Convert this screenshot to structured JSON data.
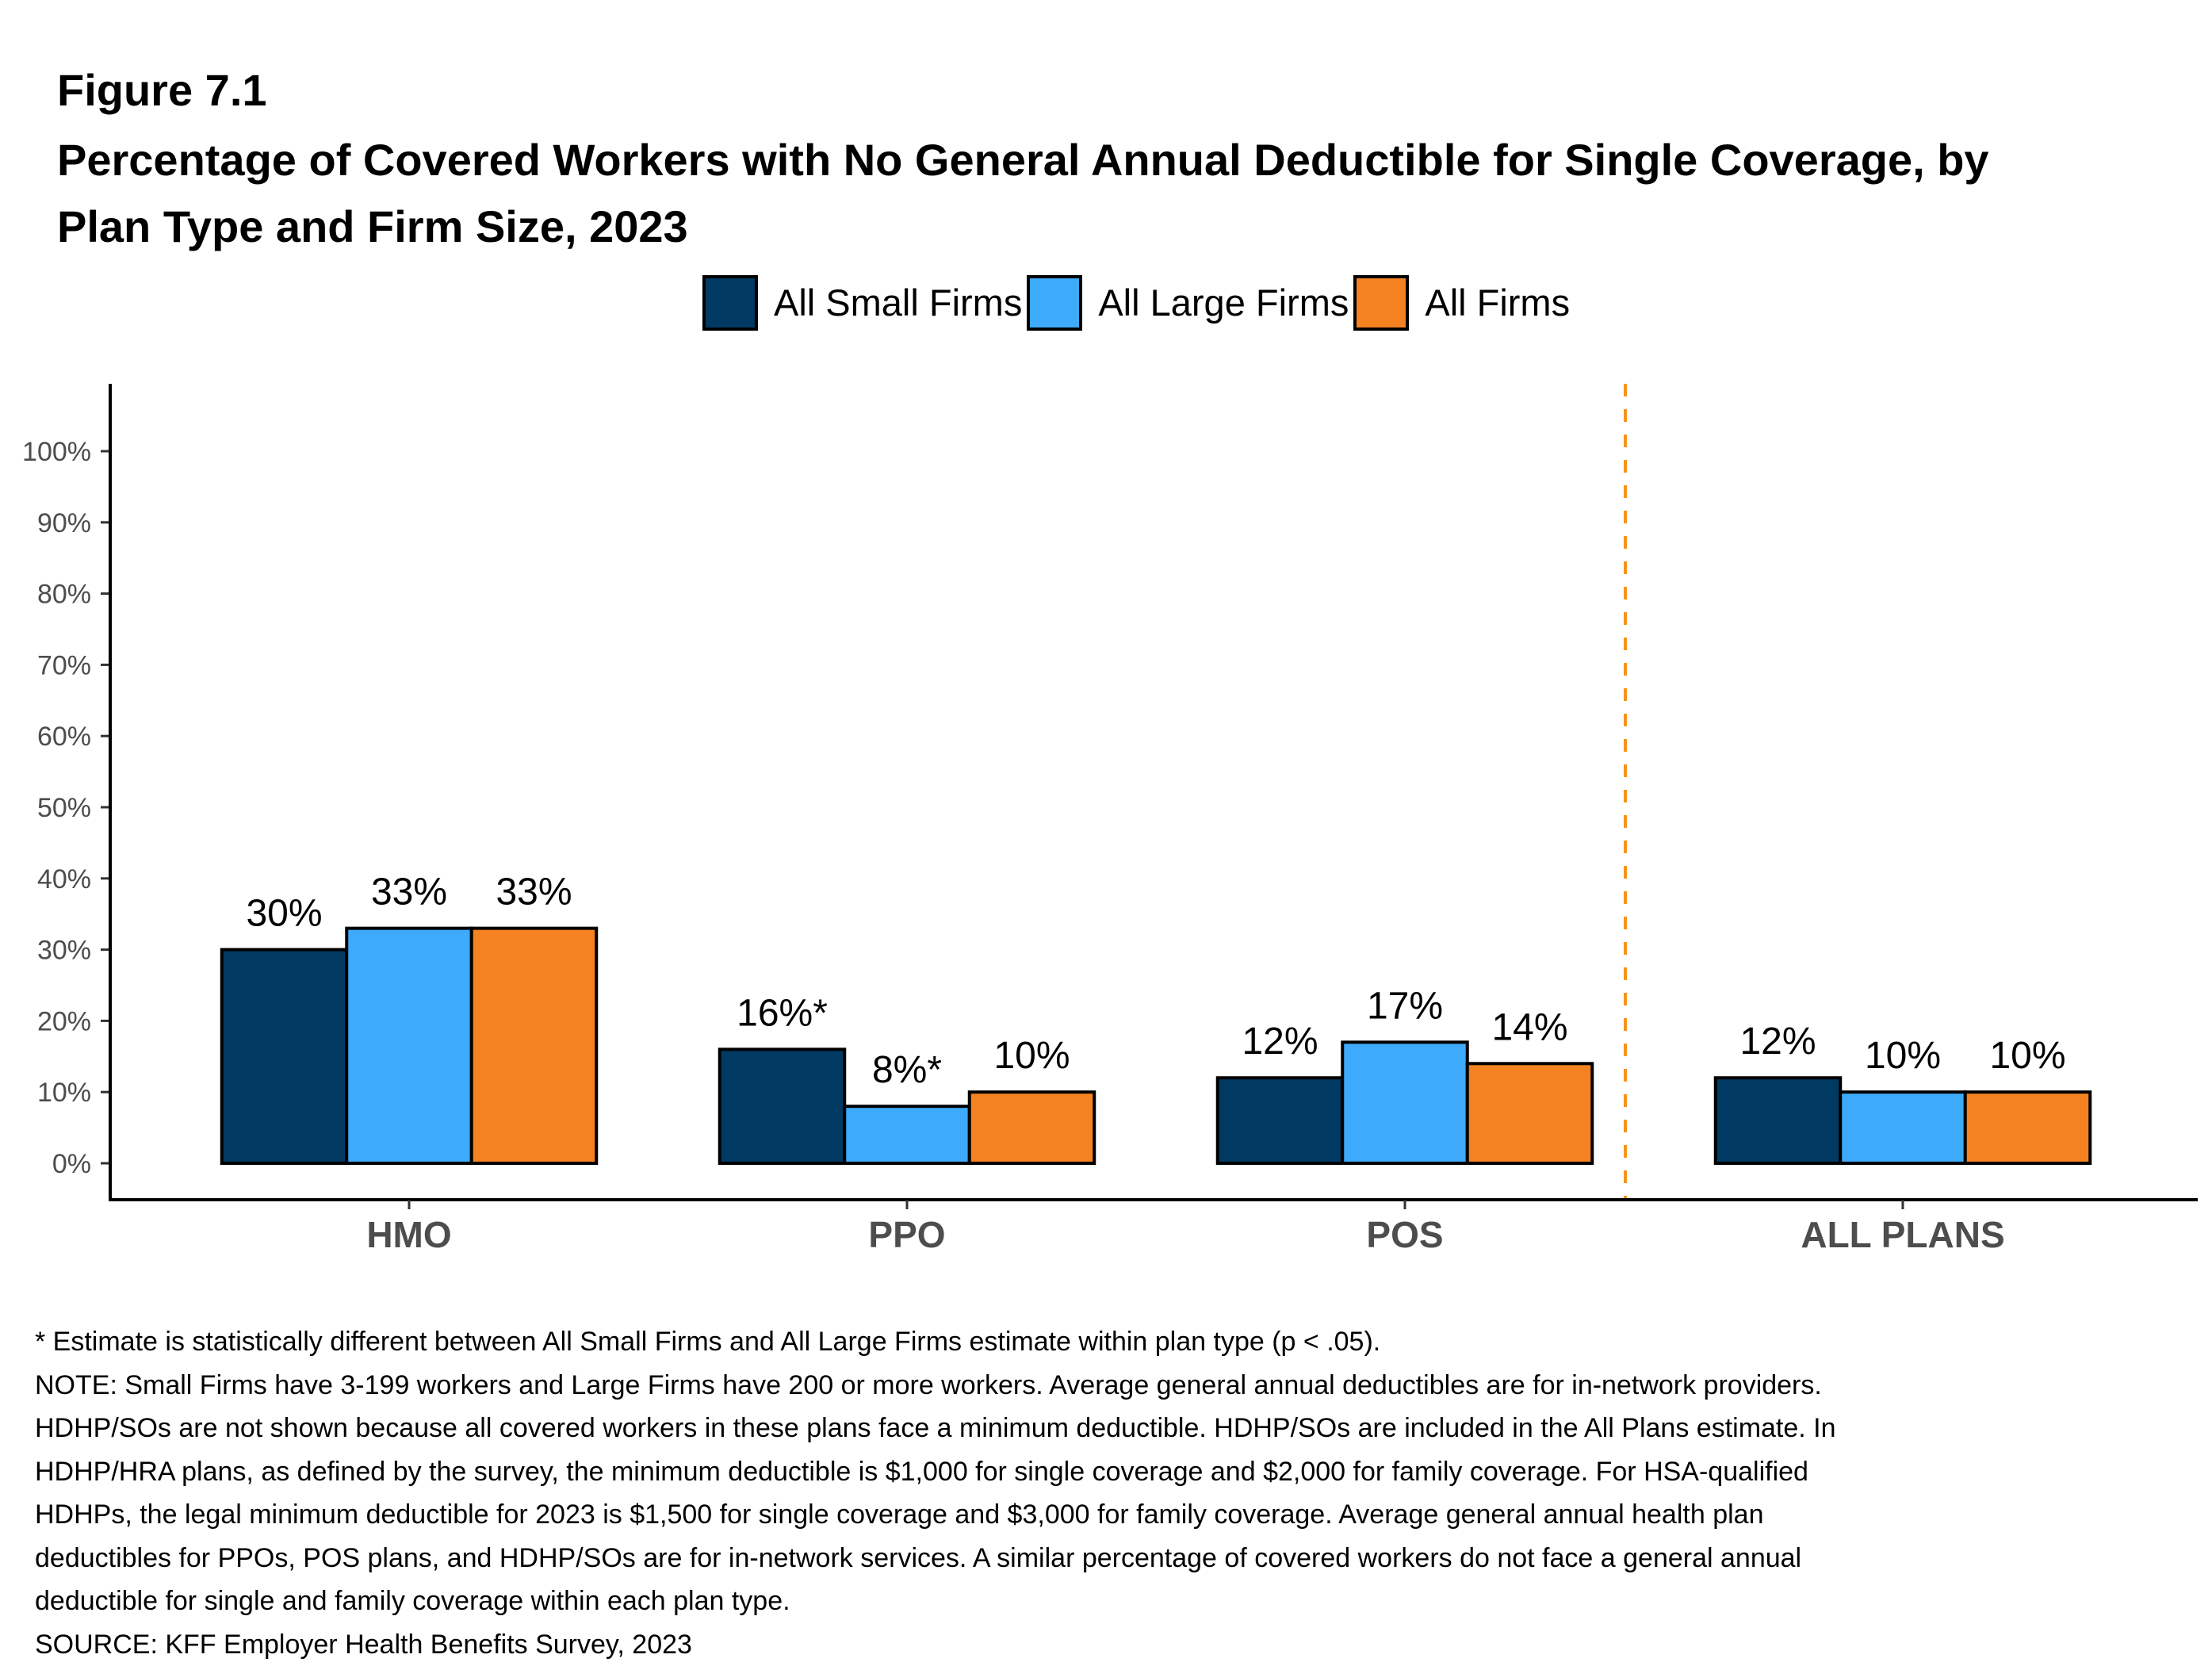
{
  "figure_label": "Figure 7.1",
  "title_lines": [
    "Percentage of Covered Workers with No General Annual Deductible for Single Coverage, by",
    "Plan Type and Firm Size, 2023"
  ],
  "notes": [
    "* Estimate is statistically different between All Small Firms and All Large Firms estimate within plan type (p < .05).",
    "NOTE: Small Firms have 3-199 workers and Large Firms have 200 or more workers. Average general annual deductibles are for in-network providers.",
    "HDHP/SOs are not shown because all covered workers in these plans face a minimum deductible. HDHP/SOs are included in the All Plans estimate. In",
    "HDHP/HRA plans, as defined by the survey, the minimum deductible is $1,000 for single coverage and $2,000 for family coverage. For HSA-qualified",
    "HDHPs, the legal minimum deductible for 2023 is $1,500 for single coverage and $3,000 for family coverage. Average general annual health plan",
    "deductibles for PPOs, POS plans, and HDHP/SOs are for in-network services. A similar percentage of covered workers do not face a general annual",
    "deductible for single and family coverage within each plan type.",
    "SOURCE: KFF Employer Health Benefits Survey, 2023"
  ],
  "chart_data": {
    "type": "bar",
    "title": "Percentage of Covered Workers with No General Annual Deductible for Single Coverage, by Plan Type and Firm Size, 2023",
    "xlabel": "",
    "ylabel": "",
    "categories": [
      "HMO",
      "PPO",
      "POS",
      "ALL PLANS"
    ],
    "series": [
      {
        "name": "All Small Firms",
        "color": "#003A63",
        "values": [
          30,
          16,
          12,
          12
        ],
        "labels": [
          "30%",
          "16%*",
          "12%",
          "12%"
        ]
      },
      {
        "name": "All Large Firms",
        "color": "#3DAAFC",
        "values": [
          33,
          8,
          17,
          10
        ],
        "labels": [
          "33%",
          "8%*",
          "17%",
          "10%"
        ]
      },
      {
        "name": "All Firms",
        "color": "#F58220",
        "values": [
          33,
          10,
          14,
          10
        ],
        "labels": [
          "33%",
          "10%",
          "14%",
          "10%"
        ]
      }
    ],
    "ylim": [
      0,
      100
    ],
    "yticks": [
      0,
      10,
      20,
      30,
      40,
      50,
      60,
      70,
      80,
      90,
      100
    ],
    "ytick_labels": [
      "0%",
      "10%",
      "20%",
      "30%",
      "40%",
      "50%",
      "60%",
      "70%",
      "80%",
      "90%",
      "100%"
    ],
    "grid": false,
    "legend_position": "top-center",
    "separator": {
      "style": "dashed",
      "color": "#F7941D",
      "between": [
        "POS",
        "ALL PLANS"
      ]
    }
  }
}
